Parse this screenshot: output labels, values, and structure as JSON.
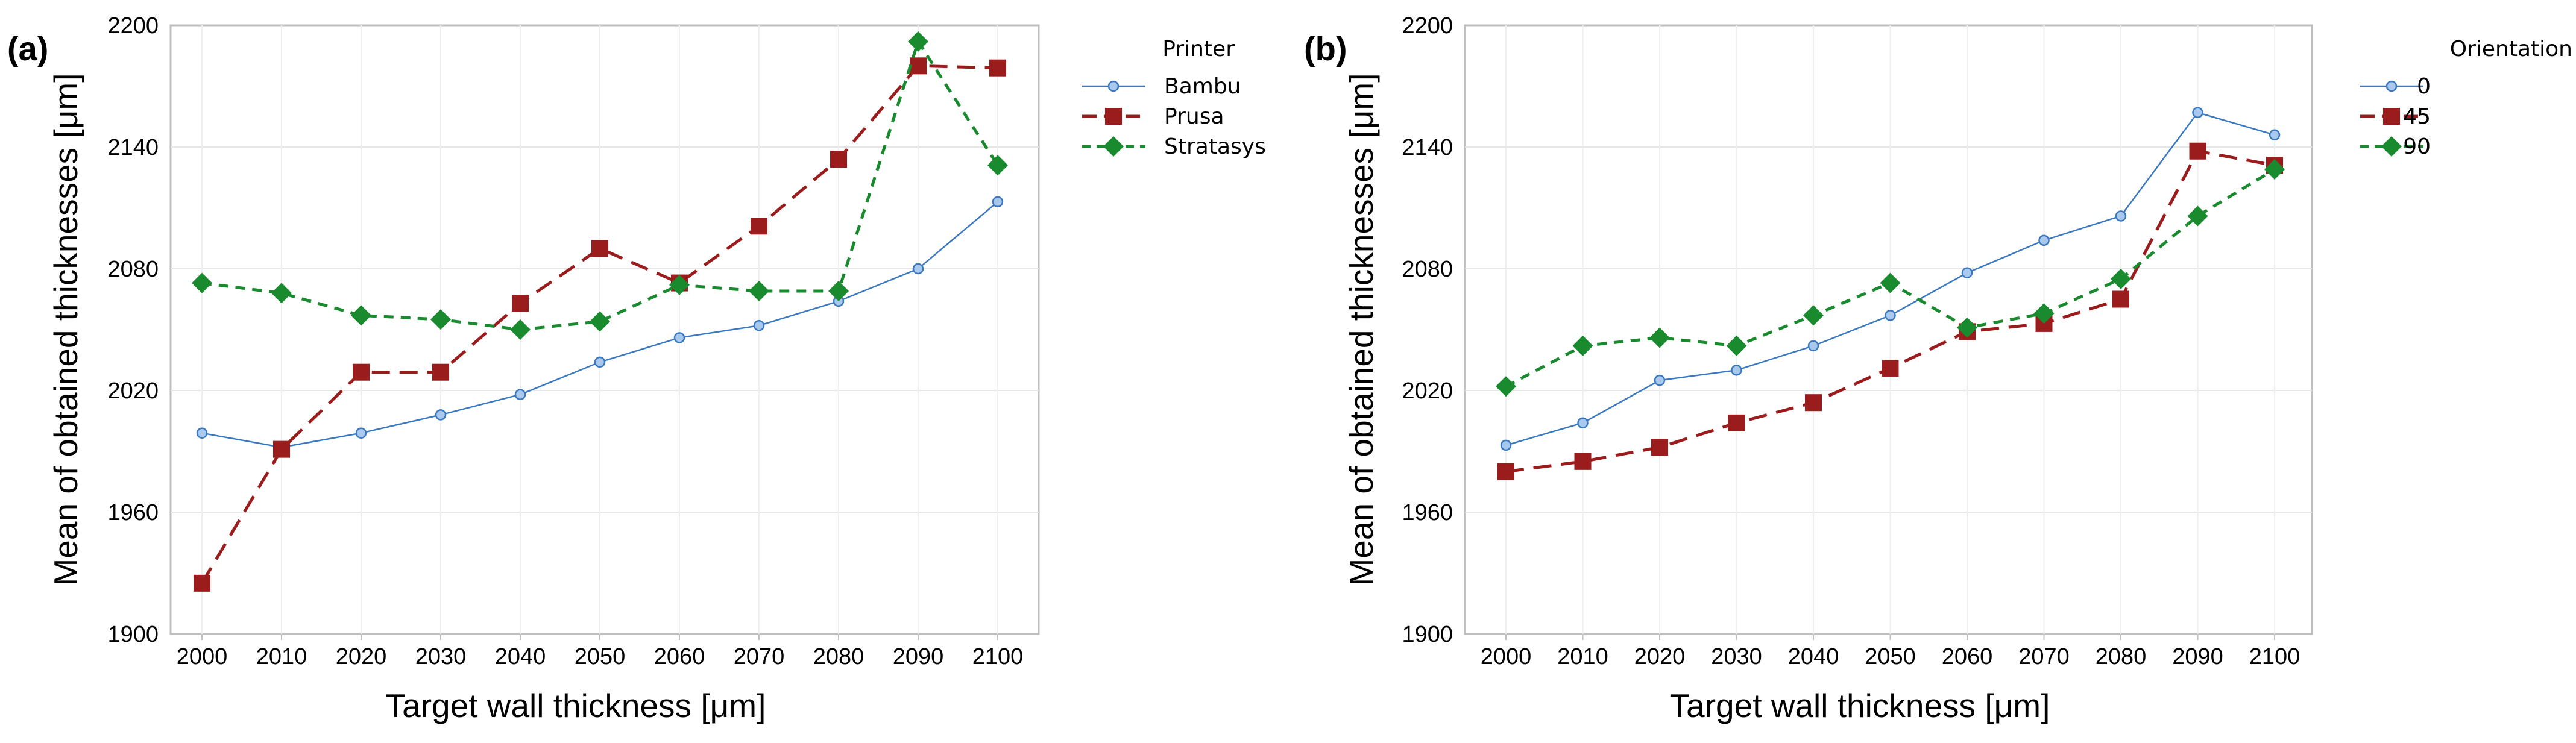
{
  "chart_data": [
    {
      "panel_label": "(a)",
      "type": "line",
      "title": "",
      "xlabel": "Target wall thickness [μm]",
      "ylabel": "Mean of obtained thicknesses [μm]",
      "categories": [
        "2000",
        "2010",
        "2020",
        "2030",
        "2040",
        "2050",
        "2060",
        "2070",
        "2080",
        "2090",
        "2100"
      ],
      "ylim": [
        1900,
        2200
      ],
      "yticks": [
        "1900",
        "1960",
        "2020",
        "2080",
        "2140",
        "2200"
      ],
      "legend_title": "Printer",
      "legend_position": "right",
      "grid": true,
      "series": [
        {
          "name": "Bambu",
          "color": "#3a78c0",
          "marker": "circle",
          "dash": "solid",
          "values": [
            1999,
            1992,
            1999,
            2008,
            2018,
            2034,
            2046,
            2052,
            2064,
            2080,
            2113
          ]
        },
        {
          "name": "Prusa",
          "color": "#9b1c1c",
          "marker": "square",
          "dash": "longdash",
          "values": [
            1925,
            1991,
            2029,
            2029,
            2063,
            2090,
            2073,
            2101,
            2134,
            2180,
            2179
          ]
        },
        {
          "name": "Stratasys",
          "color": "#1a8a2e",
          "marker": "diamond",
          "dash": "shortdash",
          "values": [
            2073,
            2068,
            2057,
            2055,
            2050,
            2054,
            2072,
            2069,
            2069,
            2192,
            2131
          ]
        }
      ]
    },
    {
      "panel_label": "(b)",
      "type": "line",
      "title": "",
      "xlabel": "Target wall thickness [μm]",
      "ylabel": "Mean of obtained thicknesses [μm]",
      "categories": [
        "2000",
        "2010",
        "2020",
        "2030",
        "2040",
        "2050",
        "2060",
        "2070",
        "2080",
        "2090",
        "2100"
      ],
      "ylim": [
        1900,
        2200
      ],
      "yticks": [
        "1900",
        "1960",
        "2020",
        "2080",
        "2140",
        "2200"
      ],
      "legend_title": "Orientation",
      "legend_position": "right",
      "grid": true,
      "series": [
        {
          "name": "0",
          "color": "#3a78c0",
          "marker": "circle",
          "dash": "solid",
          "values": [
            1993,
            2004,
            2025,
            2030,
            2042,
            2057,
            2078,
            2094,
            2106,
            2157,
            2146
          ]
        },
        {
          "name": "45",
          "color": "#9b1c1c",
          "marker": "square",
          "dash": "longdash",
          "values": [
            1980,
            1985,
            1992,
            2004,
            2014,
            2031,
            2049,
            2053,
            2065,
            2138,
            2131
          ]
        },
        {
          "name": "90",
          "color": "#1a8a2e",
          "marker": "diamond",
          "dash": "shortdash",
          "values": [
            2022,
            2042,
            2046,
            2042,
            2057,
            2073,
            2051,
            2058,
            2075,
            2106,
            2129
          ]
        }
      ]
    }
  ]
}
